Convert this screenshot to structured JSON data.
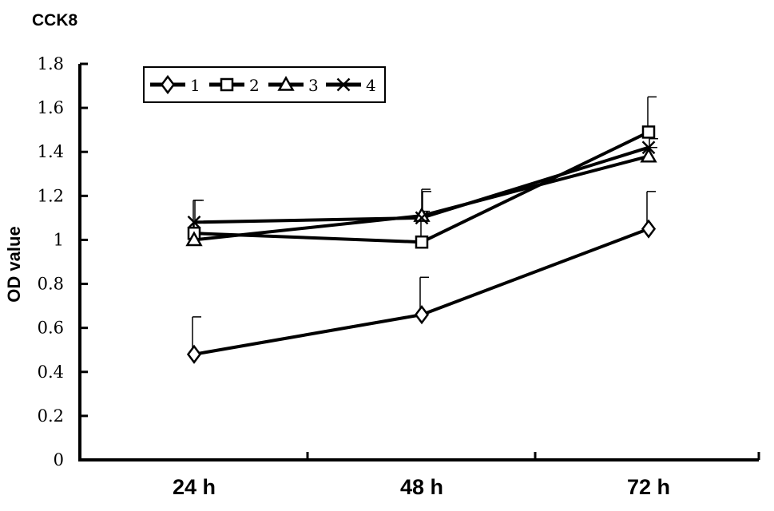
{
  "chart_data": {
    "type": "line",
    "title": "CCK8",
    "xlabel": "",
    "ylabel": "OD  value",
    "categories": [
      "24 h",
      "48 h",
      "72 h"
    ],
    "ylim": [
      0,
      1.8
    ],
    "yticks": [
      "0",
      "0.2",
      "0.4",
      "0.6",
      "0.8",
      "1",
      "1.2",
      "1.4",
      "1.6",
      "1.8"
    ],
    "legend_position": "top-left",
    "grid": false,
    "series": [
      {
        "name": "1",
        "marker": "diamond",
        "values": [
          0.48,
          0.66,
          1.05
        ],
        "errors": [
          0.17,
          0.17,
          0.17
        ]
      },
      {
        "name": "2",
        "marker": "square",
        "values": [
          1.03,
          0.99,
          1.49
        ],
        "errors": [
          0.15,
          0.14,
          0.16
        ]
      },
      {
        "name": "3",
        "marker": "triangle",
        "values": [
          1.0,
          1.11,
          1.38
        ],
        "errors": [
          0.08,
          0.12,
          0.04
        ]
      },
      {
        "name": "4",
        "marker": "x",
        "values": [
          1.08,
          1.1,
          1.42
        ],
        "errors": [
          0.1,
          0.12,
          0.04
        ]
      }
    ]
  }
}
